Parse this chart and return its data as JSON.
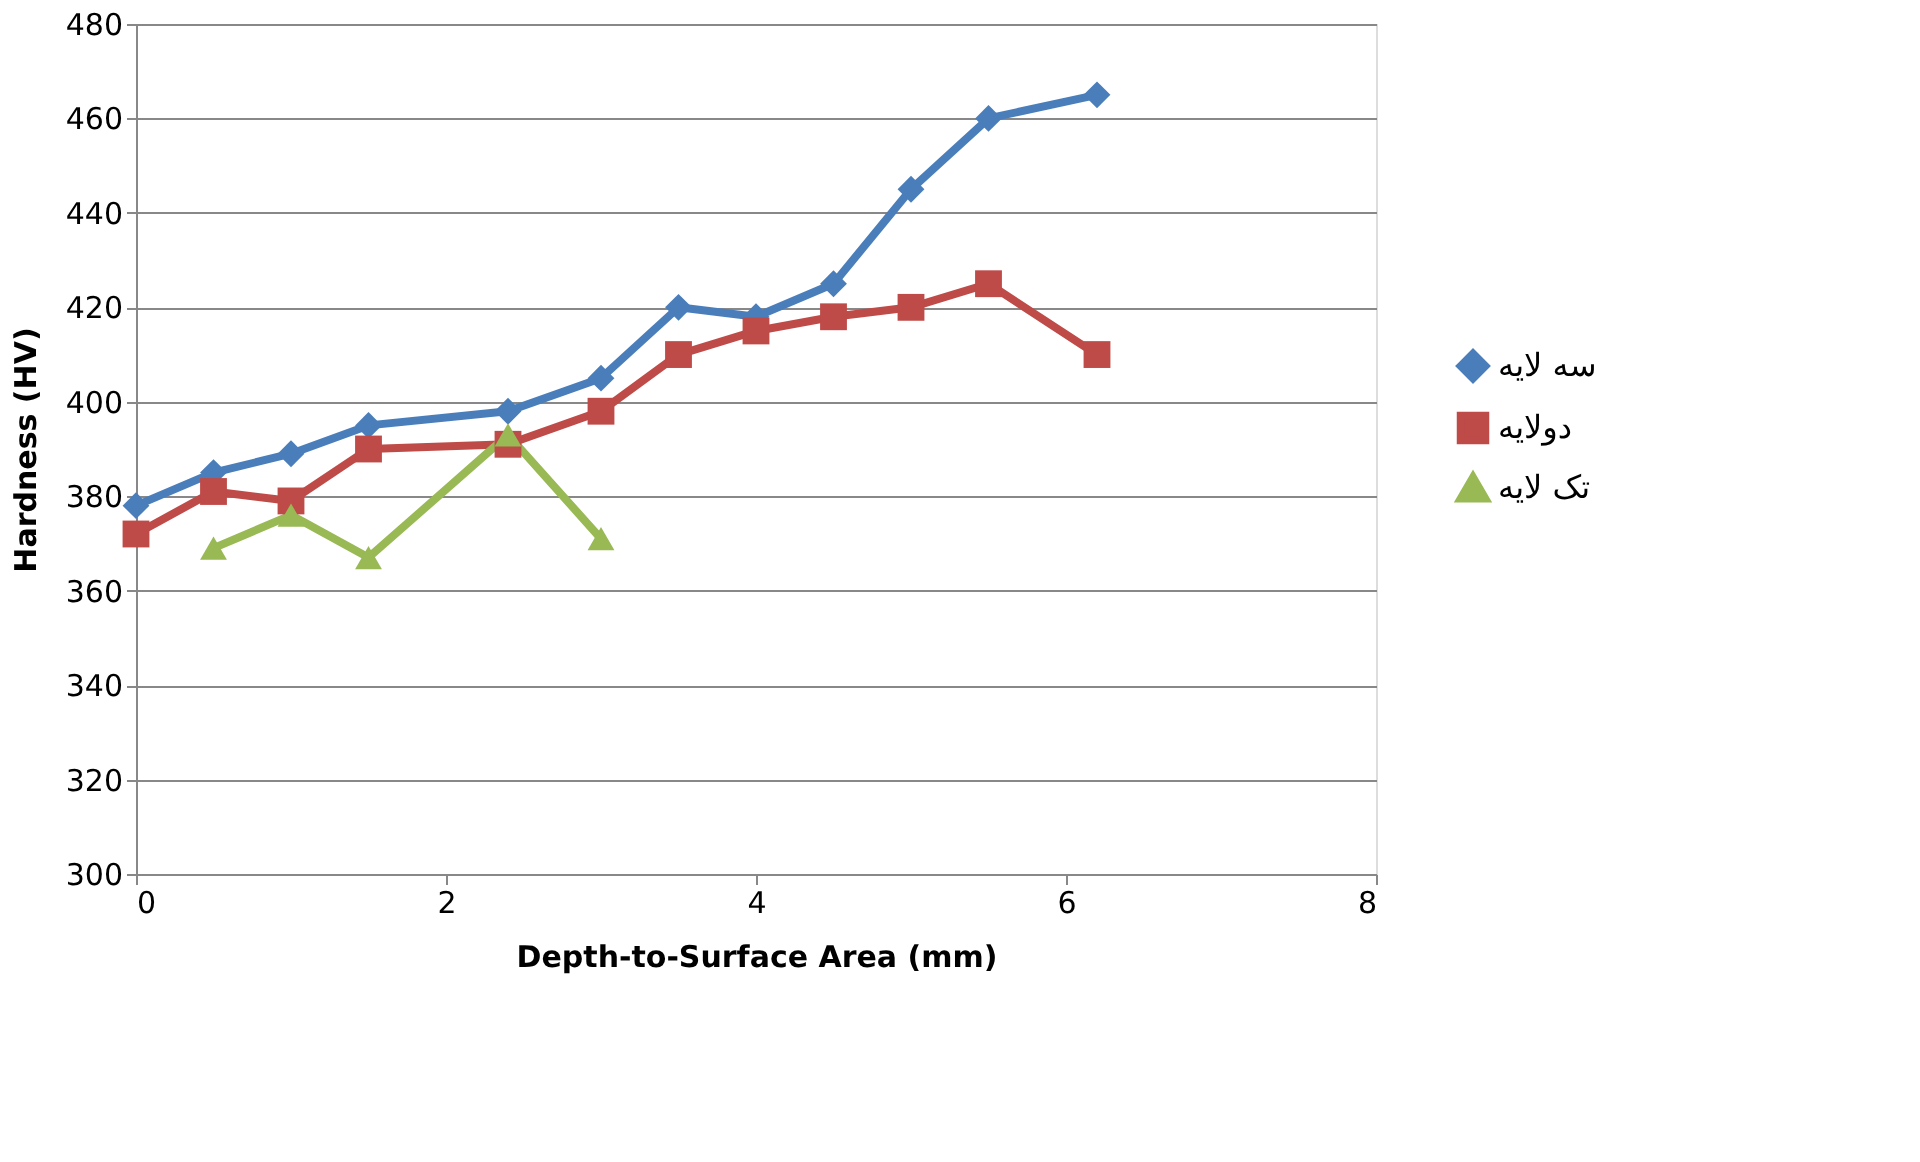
{
  "chart_data": {
    "type": "line",
    "xlabel": "Depth-to-Surface Area (mm)",
    "ylabel": "Hardness (HV)",
    "xlim": [
      0,
      8
    ],
    "xticks": [
      0,
      2,
      4,
      6,
      8
    ],
    "ylim": [
      300,
      480
    ],
    "yticks": [
      300,
      320,
      340,
      360,
      380,
      400,
      420,
      440,
      460,
      480
    ],
    "grid": "y",
    "legend": "right",
    "series": [
      {
        "name": "سه لایه",
        "color": "#4a7ebb",
        "marker": "diamond",
        "x": [
          0,
          0.5,
          1,
          1.5,
          2.4,
          3,
          3.5,
          4,
          4.5,
          5,
          5.5,
          6.2
        ],
        "values": [
          378,
          385,
          389,
          395,
          398,
          405,
          420,
          418,
          425,
          445,
          460,
          465
        ]
      },
      {
        "name": "دولایه",
        "color": "#be4b48",
        "marker": "square",
        "x": [
          0,
          0.5,
          1,
          1.5,
          2.4,
          3,
          3.5,
          4,
          4.5,
          5,
          5.5,
          6.2
        ],
        "values": [
          372,
          381,
          379,
          390,
          391,
          398,
          410,
          415,
          418,
          420,
          425,
          410
        ]
      },
      {
        "name": "تک لایه",
        "color": "#98b954",
        "marker": "triangle",
        "x": [
          0.5,
          1,
          1.5,
          2.4,
          3
        ],
        "values": [
          369,
          376,
          367,
          393,
          371
        ]
      }
    ]
  }
}
